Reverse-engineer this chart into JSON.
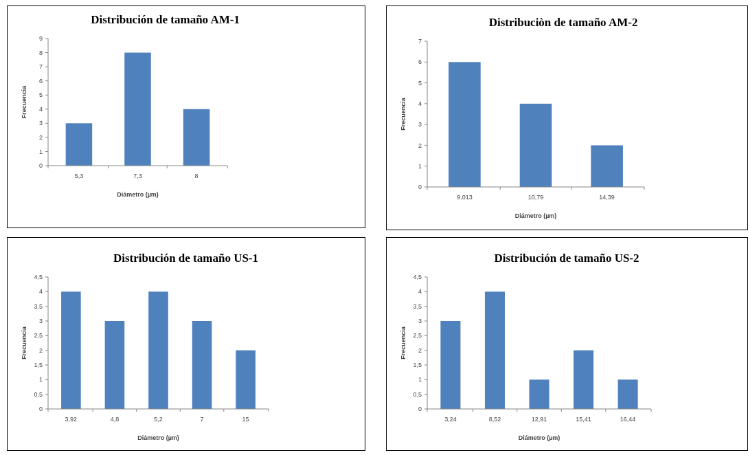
{
  "chart_data": [
    {
      "type": "bar",
      "title": "Distribución de tamaño AM-1",
      "xlabel": "Diámetro (µm)",
      "ylabel": "Frecuencia",
      "categories": [
        "5,3",
        "7,3",
        "8"
      ],
      "values": [
        3,
        8,
        4
      ],
      "color": "#4f81bd",
      "ylim": [
        0,
        9
      ],
      "yticks": [
        0,
        1,
        2,
        3,
        4,
        5,
        6,
        7,
        8,
        9
      ],
      "grid": false
    },
    {
      "type": "bar",
      "title": "Distribuciòn de tamaño AM-2",
      "xlabel": "Diámetro (µm)",
      "ylabel": "Frecuencia",
      "categories": [
        "9,013",
        "10,79",
        "14,39"
      ],
      "values": [
        6,
        4,
        2
      ],
      "color": "#4f81bd",
      "ylim": [
        0,
        7
      ],
      "yticks": [
        0,
        1,
        2,
        3,
        4,
        5,
        6,
        7
      ],
      "grid": false
    },
    {
      "type": "bar",
      "title": "Distribución de tamaño US-1",
      "xlabel": "Diámetro (µm)",
      "ylabel": "Frecuencia",
      "categories": [
        "3,92",
        "4,8",
        "5,2",
        "7",
        "15"
      ],
      "values": [
        4,
        3,
        4,
        3,
        2
      ],
      "color": "#4f81bd",
      "ylim": [
        0,
        4.5
      ],
      "yticks": [
        0,
        {
          "value": 0.5,
          "label": "0,5"
        },
        1,
        {
          "value": 1.5,
          "label": "1,5"
        },
        2,
        {
          "value": 2.5,
          "label": "2,5"
        },
        3,
        {
          "value": 3.5,
          "label": "3,5"
        },
        4,
        {
          "value": 4.5,
          "label": "4,5"
        }
      ],
      "grid": false
    },
    {
      "type": "bar",
      "title": "Distribución de tamaño US-2",
      "xlabel": "Diámetro (µm)",
      "ylabel": "Frecuencia",
      "categories": [
        "3,24",
        "8,52",
        "12,91",
        "15,41",
        "16,44"
      ],
      "values": [
        3,
        4,
        1,
        2,
        1
      ],
      "color": "#4f81bd",
      "ylim": [
        0,
        4.5
      ],
      "yticks": [
        0,
        {
          "value": 0.5,
          "label": "0,5"
        },
        1,
        {
          "value": 1.5,
          "label": "1,5"
        },
        2,
        {
          "value": 2.5,
          "label": "2,5"
        },
        3,
        {
          "value": 3.5,
          "label": "3,5"
        },
        4,
        {
          "value": 4.5,
          "label": "4,5"
        }
      ],
      "grid": false
    }
  ]
}
